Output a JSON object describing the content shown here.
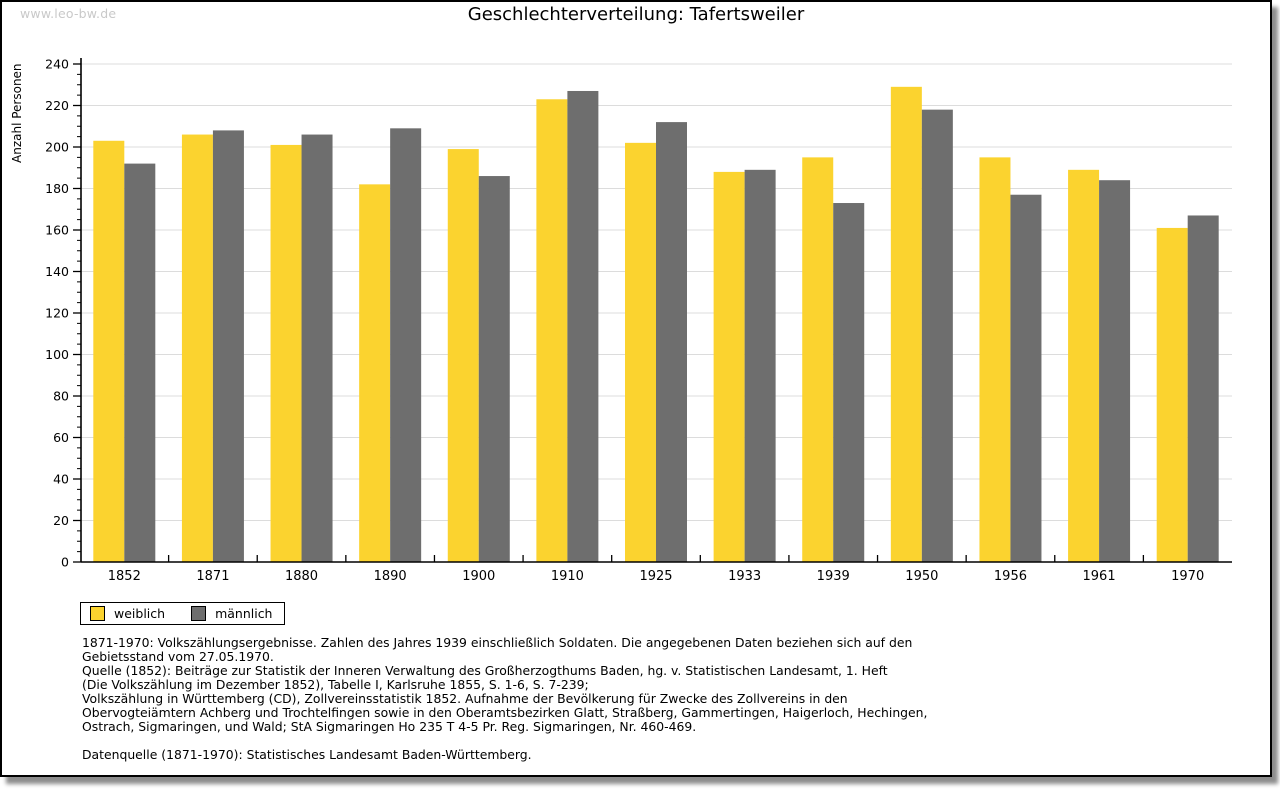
{
  "watermark": "www.leo-bw.de",
  "chart_data": {
    "type": "bar",
    "title": "Geschlechterverteilung: Tafertsweiler",
    "ylabel": "Anzahl Personen",
    "xlabel": "",
    "ylim": [
      0,
      240
    ],
    "ytick_step": 20,
    "yminor_step": 5,
    "grid": true,
    "legend_position": "bottom-left",
    "categories": [
      "1852",
      "1871",
      "1880",
      "1890",
      "1900",
      "1910",
      "1925",
      "1933",
      "1939",
      "1950",
      "1956",
      "1961",
      "1970"
    ],
    "series": [
      {
        "name": "weiblich",
        "color": "#FBD32F",
        "values": [
          203,
          206,
          201,
          182,
          199,
          223,
          202,
          188,
          195,
          229,
          195,
          189,
          161
        ]
      },
      {
        "name": "männlich",
        "color": "#6E6E6E",
        "values": [
          192,
          208,
          206,
          209,
          186,
          227,
          212,
          189,
          173,
          218,
          177,
          184,
          167
        ]
      }
    ]
  },
  "notes": {
    "lines": [
      "1871-1970: Volkszählungsergebnisse. Zahlen des Jahres 1939 einschließlich Soldaten. Die angegebenen Daten beziehen sich auf den",
      "Gebietsstand vom 27.05.1970.",
      "Quelle (1852): Beiträge zur Statistik der Inneren Verwaltung des Großherzogthums Baden, hg. v. Statistischen Landesamt, 1. Heft",
      "(Die Volkszählung im Dezember 1852), Tabelle I, Karlsruhe 1855, S. 1-6, S. 7-239;",
      "Volkszählung in Württemberg (CD), Zollvereinsstatistik 1852. Aufnahme der Bevölkerung für Zwecke des Zollvereins in den",
      "Obervogteiämtern Achberg und Trochtelfingen sowie in den Oberamtsbezirken Glatt, Straßberg, Gammertingen, Haigerloch, Hechingen,",
      "Ostrach, Sigmaringen, und Wald; StA Sigmaringen Ho 235 T 4-5 Pr. Reg. Sigmaringen, Nr. 460-469."
    ],
    "datenquelle": "Datenquelle (1871-1970): Statistisches Landesamt Baden-Württemberg."
  }
}
